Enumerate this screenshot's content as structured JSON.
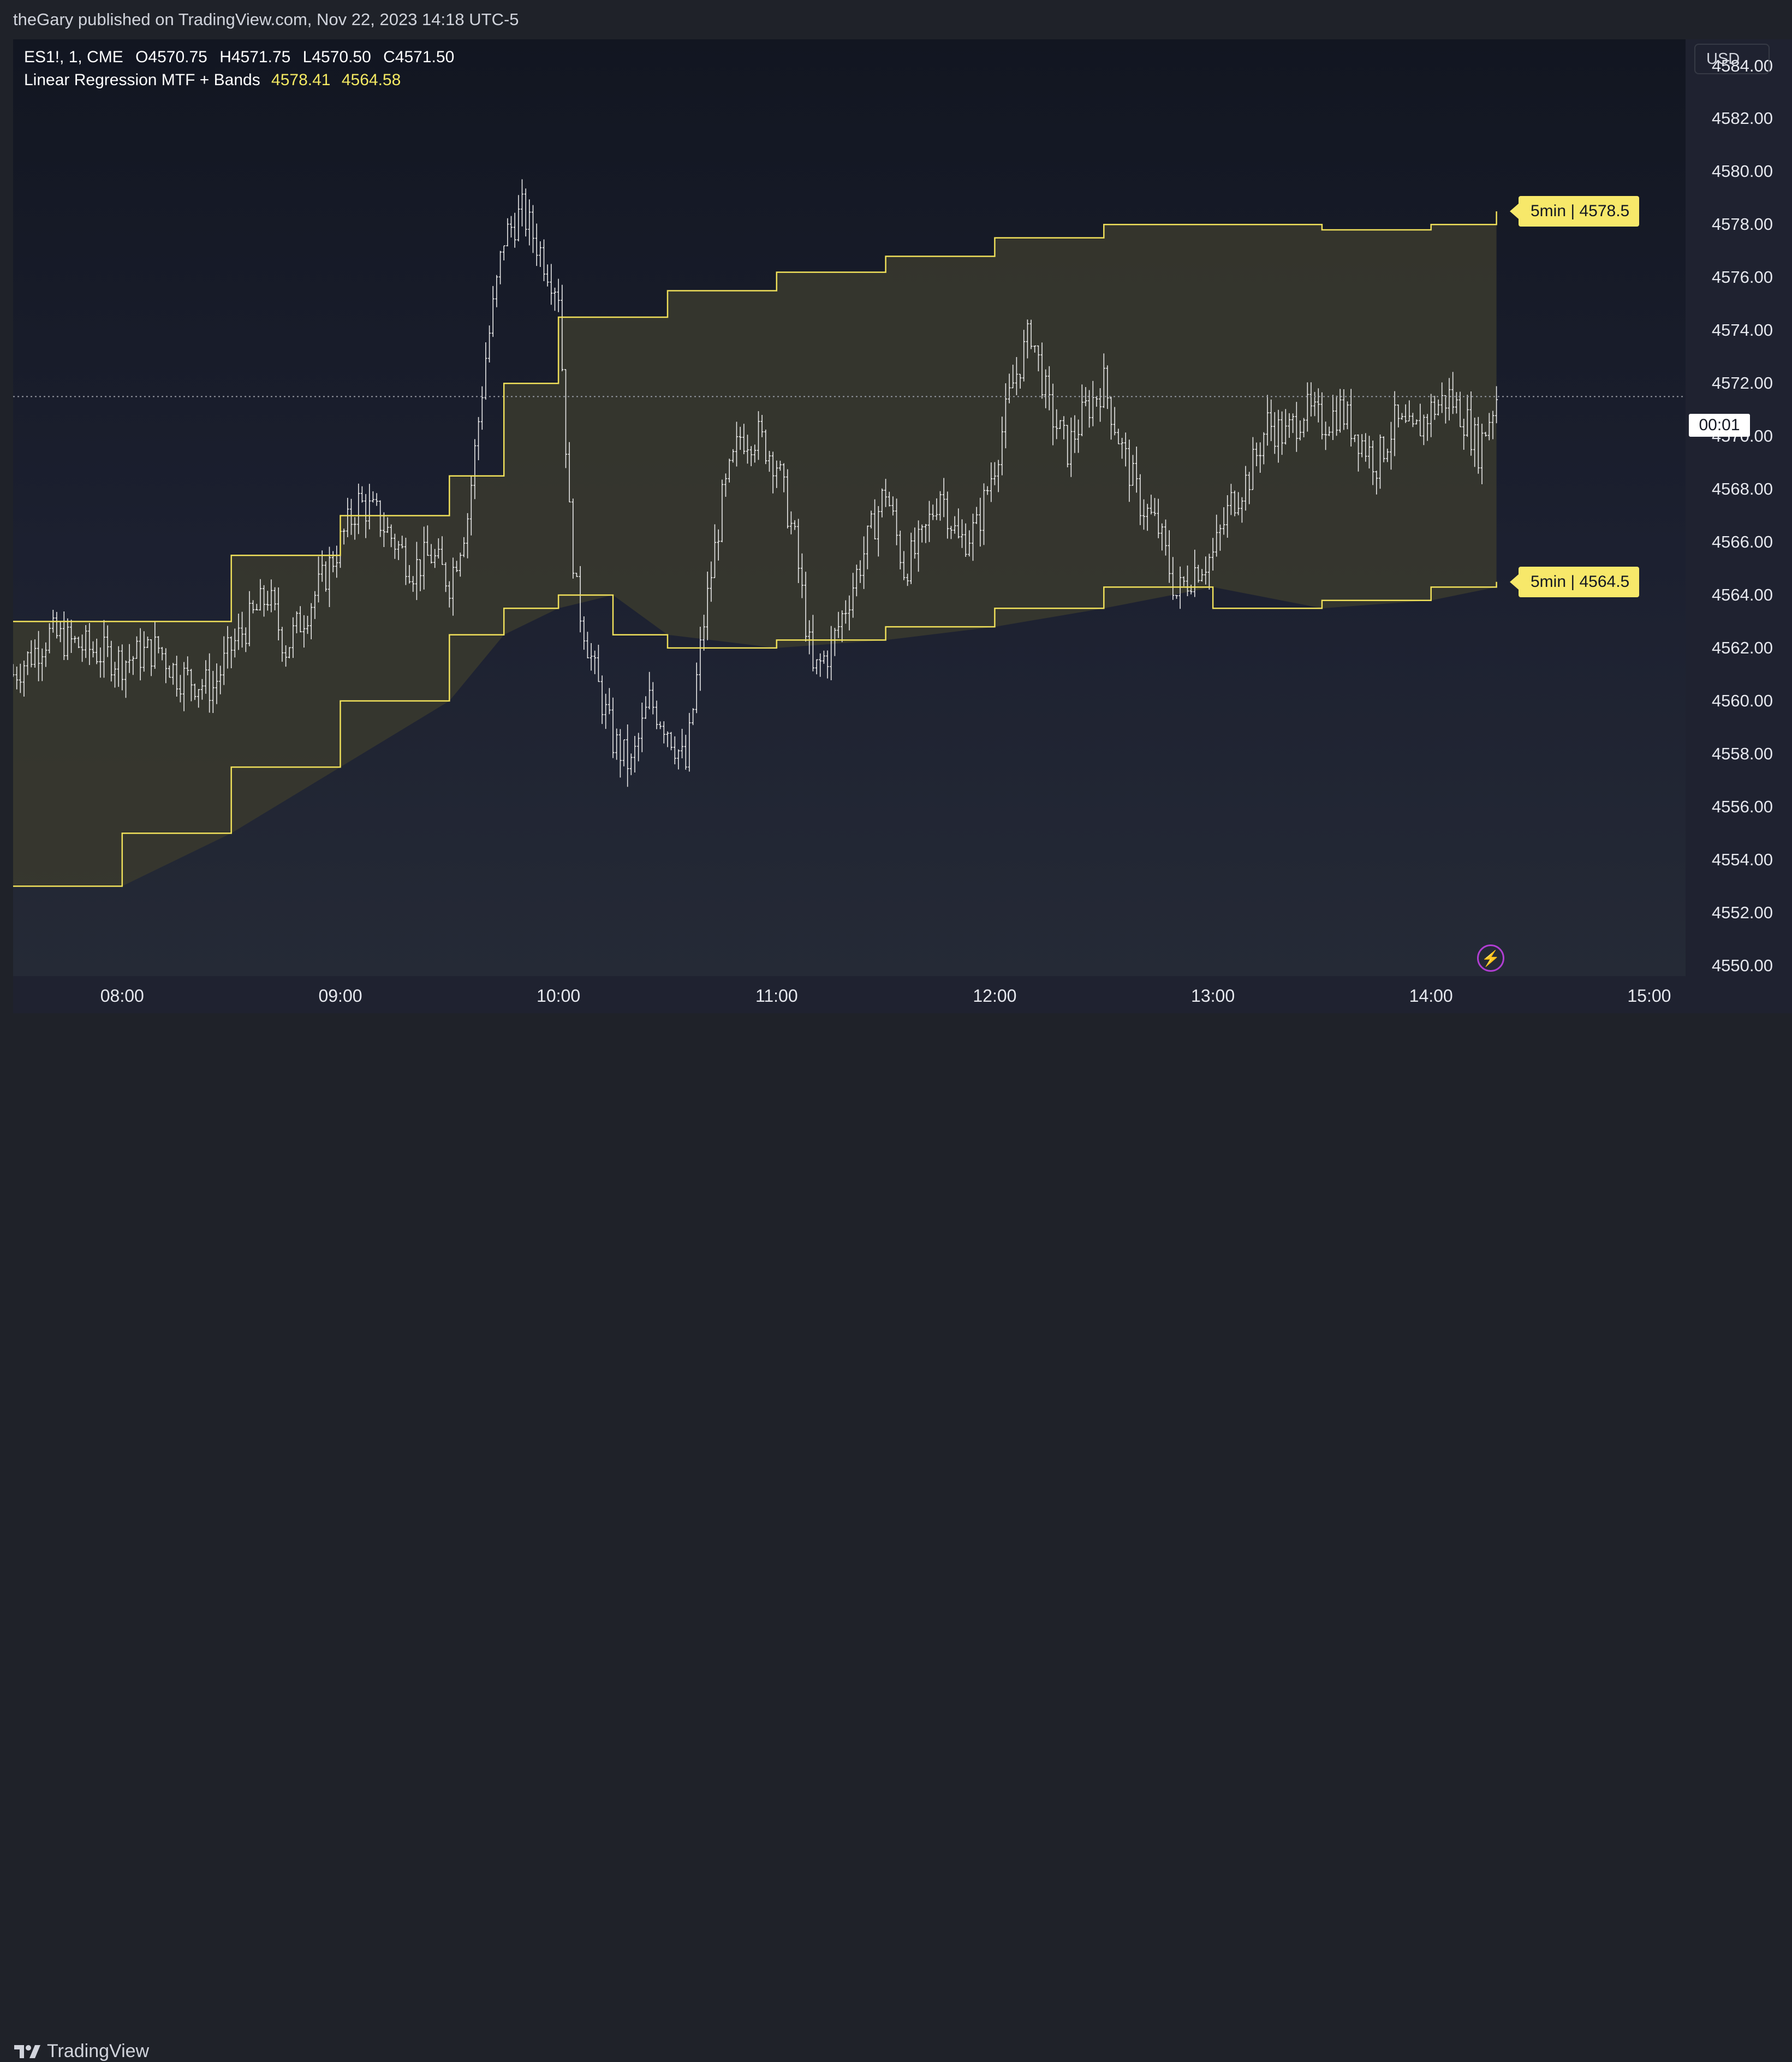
{
  "header": {
    "published": "theGary published on TradingView.com, Nov 22, 2023 14:18 UTC-5"
  },
  "legend": {
    "symbol": "ES1!, 1, CME",
    "open": "O4570.75",
    "high": "H4571.75",
    "low": "L4570.50",
    "close": "C4571.50",
    "indicator": "Linear Regression MTF + Bands",
    "upper_value": "4578.41",
    "lower_value": "4564.58"
  },
  "axis": {
    "currency": "USD",
    "crosshair_time": "00:01",
    "x_ticks": [
      "08:00",
      "09:00",
      "10:00",
      "11:00",
      "12:00",
      "13:00",
      "14:00",
      "15:00"
    ],
    "y_ticks": [
      "4584.00",
      "4582.00",
      "4580.00",
      "4578.00",
      "4576.00",
      "4574.00",
      "4572.00",
      "4570.00",
      "4568.00",
      "4566.00",
      "4564.00",
      "4562.00",
      "4560.00",
      "4558.00",
      "4556.00",
      "4554.00",
      "4552.00",
      "4550.00"
    ]
  },
  "band_labels": {
    "upper": "5min | 4578.5",
    "lower": "5min | 4564.5"
  },
  "footer": {
    "brand": "TradingView"
  },
  "colors": {
    "band_line": "#f0e05a",
    "band_fill": "#3a3a2e",
    "bar": "#e8e8e8",
    "crosshair": "#9598a1",
    "label_bg": "#f7e86a"
  },
  "chart_data": {
    "type": "ohlc",
    "title": "ES1!, 1, CME",
    "xlabel": "",
    "ylabel": "",
    "ylim": [
      4549.6,
      4585.0
    ],
    "x_range": [
      "07:30",
      "15:10"
    ],
    "grid": false,
    "current_price": 4571.5,
    "price_path": [
      [
        "07:30",
        4561.0
      ],
      [
        "07:40",
        4562.5
      ],
      [
        "07:50",
        4562.0
      ],
      [
        "08:00",
        4561.5
      ],
      [
        "08:10",
        4562.0
      ],
      [
        "08:15",
        4561.0
      ],
      [
        "08:25",
        4560.5
      ],
      [
        "08:30",
        4562.0
      ],
      [
        "08:40",
        4564.0
      ],
      [
        "08:45",
        4562.0
      ],
      [
        "08:55",
        4564.5
      ],
      [
        "09:00",
        4566.0
      ],
      [
        "09:05",
        4567.5
      ],
      [
        "09:10",
        4567.0
      ],
      [
        "09:15",
        4566.0
      ],
      [
        "09:20",
        4565.0
      ],
      [
        "09:25",
        4565.5
      ],
      [
        "09:30",
        4564.5
      ],
      [
        "09:35",
        4567.0
      ],
      [
        "09:40",
        4573.0
      ],
      [
        "09:45",
        4577.5
      ],
      [
        "09:50",
        4578.5
      ],
      [
        "09:55",
        4577.0
      ],
      [
        "10:00",
        4575.5
      ],
      [
        "10:03",
        4567.0
      ],
      [
        "10:05",
        4564.0
      ],
      [
        "10:10",
        4561.0
      ],
      [
        "10:15",
        4558.5
      ],
      [
        "10:20",
        4557.5
      ],
      [
        "10:25",
        4560.0
      ],
      [
        "10:30",
        4559.0
      ],
      [
        "10:35",
        4557.5
      ],
      [
        "10:40",
        4563.0
      ],
      [
        "10:45",
        4567.5
      ],
      [
        "10:50",
        4570.0
      ],
      [
        "10:55",
        4570.0
      ],
      [
        "11:00",
        4569.0
      ],
      [
        "11:05",
        4566.0
      ],
      [
        "11:10",
        4561.0
      ],
      [
        "11:15",
        4562.0
      ],
      [
        "11:20",
        4564.0
      ],
      [
        "11:25",
        4566.0
      ],
      [
        "11:30",
        4568.0
      ],
      [
        "11:35",
        4565.0
      ],
      [
        "11:40",
        4566.0
      ],
      [
        "11:45",
        4568.0
      ],
      [
        "11:50",
        4566.0
      ],
      [
        "11:55",
        4566.5
      ],
      [
        "12:00",
        4569.0
      ],
      [
        "12:05",
        4572.0
      ],
      [
        "12:10",
        4574.0
      ],
      [
        "12:15",
        4571.0
      ],
      [
        "12:20",
        4569.5
      ],
      [
        "12:25",
        4571.0
      ],
      [
        "12:30",
        4572.0
      ],
      [
        "12:35",
        4569.5
      ],
      [
        "12:40",
        4567.5
      ],
      [
        "12:45",
        4566.5
      ],
      [
        "12:50",
        4564.0
      ],
      [
        "12:55",
        4565.0
      ],
      [
        "13:00",
        4565.5
      ],
      [
        "13:05",
        4567.5
      ],
      [
        "13:10",
        4568.5
      ],
      [
        "13:15",
        4570.5
      ],
      [
        "13:20",
        4570.0
      ],
      [
        "13:25",
        4571.0
      ],
      [
        "13:30",
        4570.5
      ],
      [
        "13:35",
        4571.0
      ],
      [
        "13:40",
        4570.0
      ],
      [
        "13:45",
        4569.0
      ],
      [
        "13:50",
        4570.5
      ],
      [
        "13:55",
        4570.0
      ],
      [
        "14:00",
        4571.0
      ],
      [
        "14:05",
        4571.5
      ],
      [
        "14:10",
        4570.5
      ],
      [
        "14:13",
        4569.5
      ],
      [
        "14:18",
        4571.5
      ]
    ],
    "session_high": 4580.5,
    "session_low": 4555.0,
    "upper_band": [
      [
        "07:30",
        4563.0
      ],
      [
        "08:30",
        4565.5
      ],
      [
        "09:00",
        4567.0
      ],
      [
        "09:30",
        4568.5
      ],
      [
        "09:45",
        4572.0
      ],
      [
        "10:00",
        4574.5
      ],
      [
        "10:30",
        4575.5
      ],
      [
        "11:00",
        4576.2
      ],
      [
        "11:30",
        4576.8
      ],
      [
        "12:00",
        4577.5
      ],
      [
        "12:30",
        4578.0
      ],
      [
        "13:00",
        4578.0
      ],
      [
        "13:30",
        4577.8
      ],
      [
        "14:00",
        4578.0
      ],
      [
        "14:18",
        4578.5
      ]
    ],
    "lower_band": [
      [
        "07:30",
        4553.0
      ],
      [
        "08:00",
        4555.0
      ],
      [
        "08:30",
        4557.5
      ],
      [
        "09:00",
        4560.0
      ],
      [
        "09:30",
        4562.5
      ],
      [
        "09:45",
        4563.5
      ],
      [
        "10:00",
        4564.0
      ],
      [
        "10:15",
        4562.5
      ],
      [
        "10:30",
        4562.0
      ],
      [
        "11:00",
        4562.3
      ],
      [
        "11:30",
        4562.8
      ],
      [
        "12:00",
        4563.5
      ],
      [
        "12:30",
        4564.3
      ],
      [
        "13:00",
        4563.5
      ],
      [
        "13:30",
        4563.8
      ],
      [
        "14:00",
        4564.3
      ],
      [
        "14:18",
        4564.5
      ]
    ]
  }
}
